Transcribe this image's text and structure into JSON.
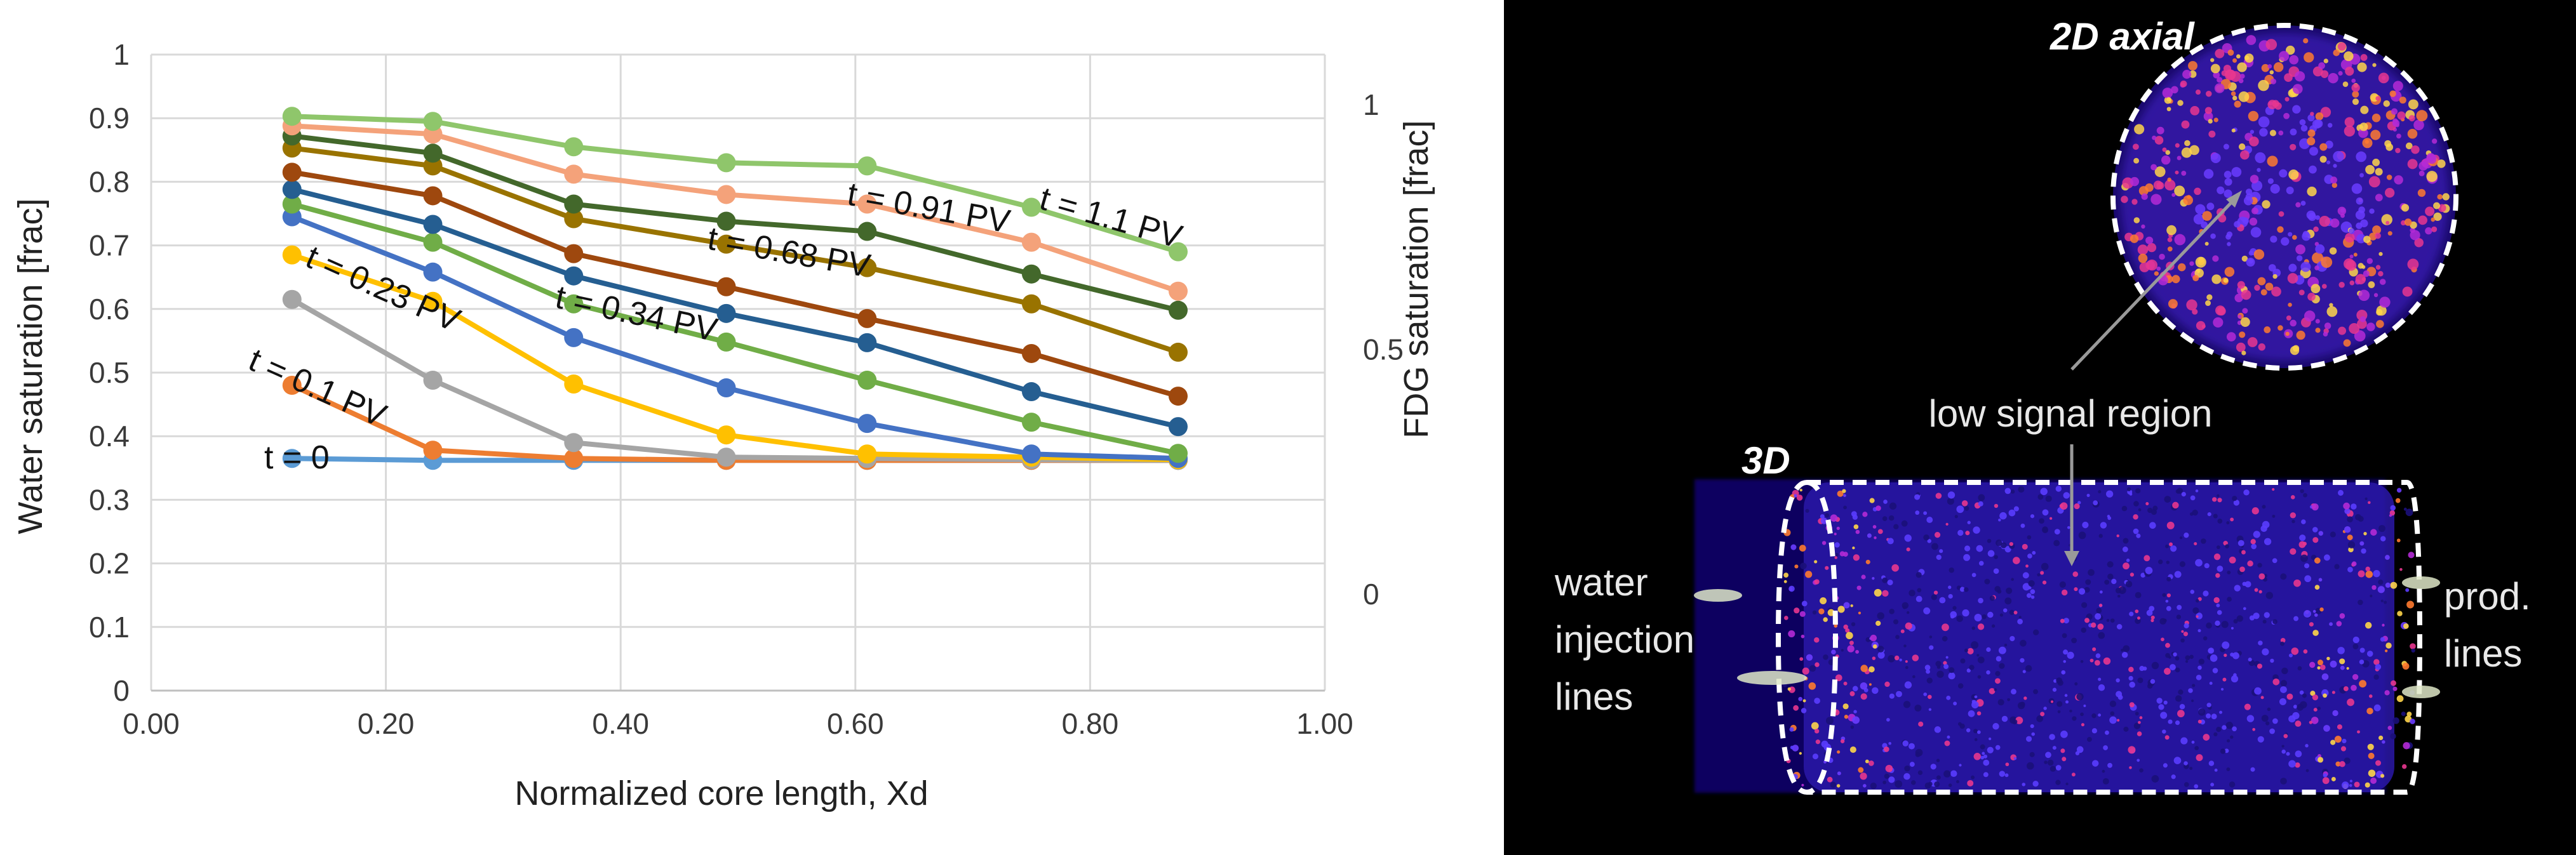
{
  "chart_data": {
    "type": "line",
    "xlabel": "Normalized core length, Xd",
    "ylabel": "Water saturation [frac]",
    "y2label": "FDG saturation [frac]",
    "xlim": [
      0,
      1
    ],
    "ylim": [
      0,
      1
    ],
    "y2lim": [
      -0.2,
      1.1
    ],
    "x_ticks": [
      "0.00",
      "0.20",
      "0.40",
      "0.60",
      "0.80",
      "1.00"
    ],
    "y_ticks": [
      "0",
      "0.1",
      "0.2",
      "0.3",
      "0.4",
      "0.5",
      "0.6",
      "0.7",
      "0.8",
      "0.9",
      "1"
    ],
    "y2_ticks": [
      {
        "label": "0",
        "value": 0
      },
      {
        "label": "0.5",
        "value": 0.5
      },
      {
        "label": "1",
        "value": 1
      }
    ],
    "x": [
      0.12,
      0.24,
      0.36,
      0.49,
      0.61,
      0.75,
      0.875
    ],
    "series": [
      {
        "name": "t = 0",
        "color": "#5b9bd5",
        "values": [
          0.365,
          0.362,
          0.362,
          0.362,
          0.362,
          0.362,
          0.362
        ]
      },
      {
        "name": "t = 0.1 PV",
        "color": "#ed7d31",
        "values": [
          0.48,
          0.378,
          0.365,
          0.362,
          0.362,
          0.362,
          0.362
        ]
      },
      {
        "name": "",
        "color": "#a5a5a5",
        "values": [
          0.615,
          0.488,
          0.39,
          0.367,
          0.365,
          0.363,
          0.362
        ]
      },
      {
        "name": "t = 0.23 PV",
        "color": "#ffc000",
        "values": [
          0.685,
          0.612,
          0.482,
          0.402,
          0.372,
          0.367,
          0.363
        ]
      },
      {
        "name": "",
        "color": "#4472c4",
        "values": [
          0.745,
          0.658,
          0.555,
          0.476,
          0.42,
          0.372,
          0.365
        ]
      },
      {
        "name": "t = 0.34 PV",
        "color": "#70ad47",
        "values": [
          0.765,
          0.705,
          0.608,
          0.548,
          0.488,
          0.422,
          0.373
        ]
      },
      {
        "name": "",
        "color": "#255e91",
        "values": [
          0.788,
          0.733,
          0.652,
          0.593,
          0.547,
          0.47,
          0.415
        ]
      },
      {
        "name": "",
        "color": "#9e480e",
        "values": [
          0.815,
          0.778,
          0.687,
          0.635,
          0.585,
          0.53,
          0.463
        ]
      },
      {
        "name": "t = 0.68 PV",
        "color": "#997300",
        "values": [
          0.853,
          0.825,
          0.742,
          0.702,
          0.665,
          0.608,
          0.532
        ]
      },
      {
        "name": "",
        "color": "#43682b",
        "values": [
          0.872,
          0.845,
          0.765,
          0.738,
          0.722,
          0.655,
          0.598
        ]
      },
      {
        "name": "t = 0.91 PV",
        "color": "#f4a27a",
        "values": [
          0.888,
          0.875,
          0.812,
          0.78,
          0.765,
          0.705,
          0.628
        ]
      },
      {
        "name": "t = 1.1 PV",
        "color": "#8fc66b",
        "values": [
          0.903,
          0.895,
          0.855,
          0.83,
          0.825,
          0.76,
          0.69
        ]
      }
    ]
  },
  "labels": {
    "t0": "t = 0",
    "t01": "t = 0.1 PV",
    "t023": "t = 0.23 PV",
    "t034": "t = 0.34 PV",
    "t068": "t = 0.68 PV",
    "t091": "t = 0.91 PV",
    "t11": "t = 1.1 PV"
  },
  "image_panel": {
    "axial_label": "2D axial",
    "view3d_label": "3D",
    "low_signal": "low signal region",
    "water_injection": [
      "water",
      "injection",
      "lines"
    ],
    "prod_lines": [
      "prod.",
      "lines"
    ]
  }
}
